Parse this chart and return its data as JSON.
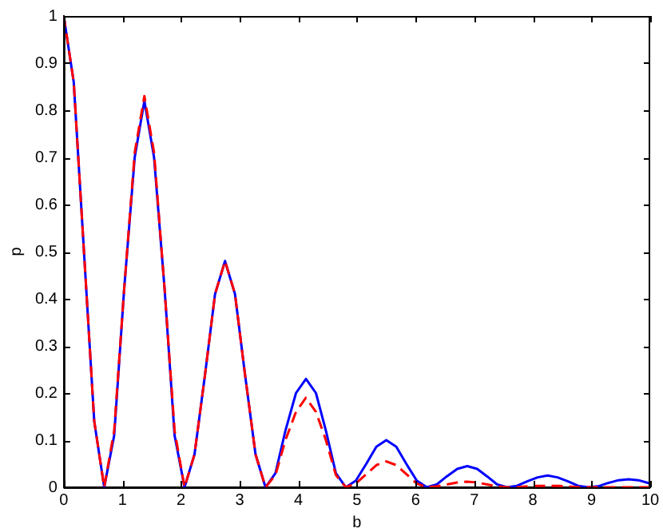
{
  "chart_data": {
    "type": "line",
    "xlabel": "b",
    "ylabel": "p",
    "xlim": [
      0,
      10
    ],
    "ylim": [
      0,
      1
    ],
    "xticks": [
      0,
      1,
      2,
      3,
      4,
      5,
      6,
      7,
      8,
      9,
      10
    ],
    "yticks": [
      0,
      0.1,
      0.2,
      0.3,
      0.4,
      0.5,
      0.6,
      0.7,
      0.8,
      0.9,
      1
    ],
    "grid": false,
    "legend": false,
    "marker": "none",
    "x": [
      0,
      0.17,
      0.34,
      0.52,
      0.69,
      0.86,
      1.03,
      1.21,
      1.375,
      1.54,
      1.72,
      1.89,
      2.06,
      2.23,
      2.41,
      2.58,
      2.75,
      2.92,
      3.09,
      3.27,
      3.44,
      3.61,
      3.78,
      3.96,
      4.13,
      4.3,
      4.47,
      4.64,
      4.81,
      4.98,
      5.16,
      5.33,
      5.5,
      5.67,
      5.84,
      6.02,
      6.19,
      6.36,
      6.53,
      6.71,
      6.88,
      7.05,
      7.22,
      7.39,
      7.56,
      7.73,
      7.91,
      8.08,
      8.25,
      8.42,
      8.59,
      8.77,
      8.94,
      9.11,
      9.28,
      9.46,
      9.63,
      9.8,
      9.97,
      10
    ],
    "series": [
      {
        "color": "#0000ff",
        "line_style": "solid",
        "values": [
          1,
          0.86,
          0.51,
          0.14,
          0,
          0.11,
          0.42,
          0.7,
          0.82,
          0.7,
          0.42,
          0.11,
          0,
          0.07,
          0.24,
          0.41,
          0.48,
          0.41,
          0.24,
          0.07,
          0,
          0.03,
          0.12,
          0.2,
          0.23,
          0.2,
          0.12,
          0.03,
          0,
          0.014,
          0.05,
          0.086,
          0.1,
          0.086,
          0.05,
          0.014,
          0,
          0.006,
          0.023,
          0.039,
          0.045,
          0.039,
          0.023,
          0.006,
          0,
          0.003,
          0.013,
          0.021,
          0.025,
          0.021,
          0.013,
          0.003,
          0,
          0.002,
          0.009,
          0.015,
          0.017,
          0.015,
          0.009,
          0.008
        ]
      },
      {
        "color": "#ff0000",
        "line_style": "dashed",
        "values": [
          1,
          0.86,
          0.51,
          0.14,
          0,
          0.12,
          0.42,
          0.71,
          0.83,
          0.71,
          0.42,
          0.12,
          0,
          0.07,
          0.24,
          0.41,
          0.48,
          0.41,
          0.24,
          0.07,
          0,
          0.026,
          0.1,
          0.16,
          0.19,
          0.16,
          0.1,
          0.026,
          0,
          0.008,
          0.028,
          0.047,
          0.055,
          0.047,
          0.028,
          0.008,
          0,
          0.002,
          0.006,
          0.01,
          0.012,
          0.01,
          0.006,
          0.002,
          0,
          0,
          0.002,
          0.003,
          0.003,
          0.003,
          0.002,
          0,
          0,
          0,
          0,
          0,
          0,
          0,
          0,
          0
        ]
      }
    ]
  }
}
